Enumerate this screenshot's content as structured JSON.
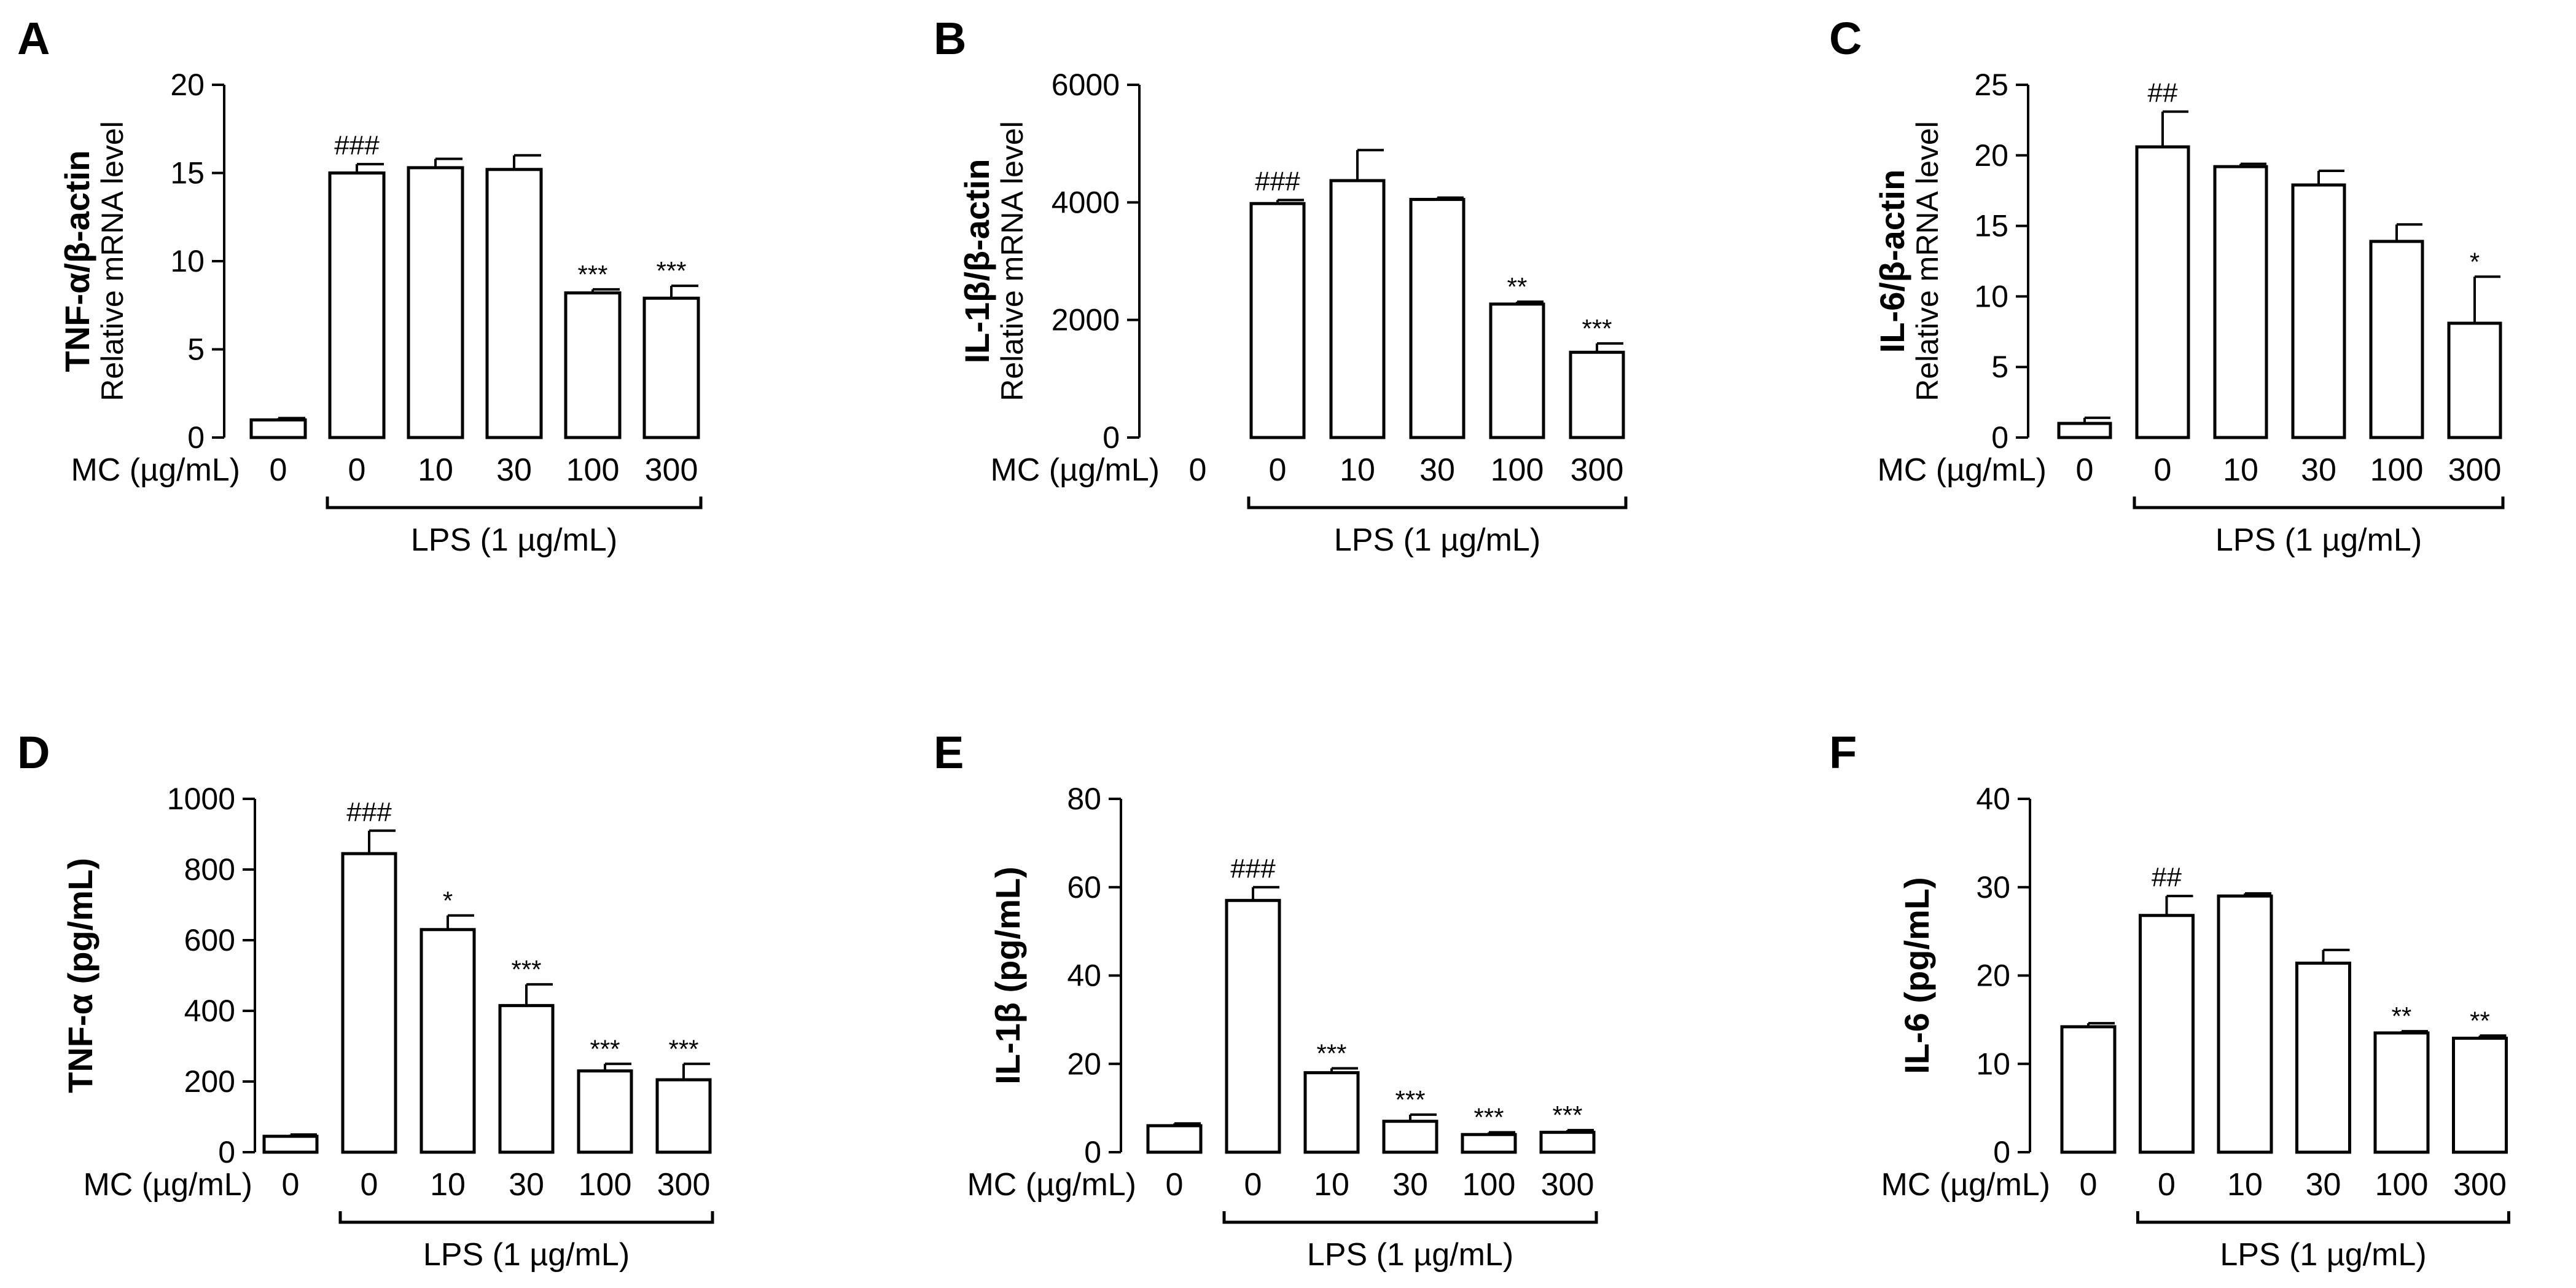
{
  "figure": {
    "x_label": "MC (µg/mL)",
    "group_label": "LPS (1 µg/mL)"
  },
  "chart_data": [
    {
      "panel": "A",
      "type": "bar",
      "ylabel_main": "TNF-α/β-actin",
      "ylabel_sub": "Relative mRNA level",
      "categories": [
        "0",
        "0",
        "10",
        "30",
        "100",
        "300"
      ],
      "values": [
        1,
        15,
        15.3,
        15.2,
        8.2,
        7.9
      ],
      "errors": [
        0.1,
        0.5,
        0.5,
        0.8,
        0.2,
        0.7
      ],
      "annotations": [
        "",
        "###",
        "",
        "",
        "***",
        "***"
      ],
      "ylim": [
        0,
        20
      ],
      "yticks": [
        0,
        5,
        10,
        15,
        20
      ],
      "grid": false,
      "legend": "none"
    },
    {
      "panel": "B",
      "type": "bar",
      "ylabel_main": "IL-1β/β-actin",
      "ylabel_sub": "Relative mRNA level",
      "categories": [
        "0",
        "0",
        "10",
        "30",
        "100",
        "300"
      ],
      "values": [
        0,
        3980,
        4370,
        4050,
        2270,
        1450
      ],
      "errors": [
        0,
        60,
        520,
        30,
        40,
        150
      ],
      "annotations": [
        "",
        "###",
        "",
        "",
        "**",
        "***"
      ],
      "ylim": [
        0,
        6000
      ],
      "yticks": [
        0,
        2000,
        4000,
        6000
      ],
      "grid": false,
      "legend": "none"
    },
    {
      "panel": "C",
      "type": "bar",
      "ylabel_main": "IL-6/β-actin",
      "ylabel_sub": "Relative mRNA level",
      "categories": [
        "0",
        "0",
        "10",
        "30",
        "100",
        "300"
      ],
      "values": [
        1,
        20.6,
        19.2,
        17.9,
        13.9,
        8.1
      ],
      "errors": [
        0.4,
        2.5,
        0.2,
        1.0,
        1.2,
        3.3
      ],
      "annotations": [
        "",
        "##",
        "",
        "",
        "",
        "*"
      ],
      "ylim": [
        0,
        25
      ],
      "yticks": [
        0,
        5,
        10,
        15,
        20,
        25
      ],
      "grid": false,
      "legend": "none"
    },
    {
      "panel": "D",
      "type": "bar",
      "ylabel_main": "TNF-α (pg/mL)",
      "ylabel_sub": "",
      "categories": [
        "0",
        "0",
        "10",
        "30",
        "100",
        "300"
      ],
      "values": [
        45,
        845,
        630,
        415,
        230,
        205
      ],
      "errors": [
        5,
        65,
        40,
        60,
        20,
        45
      ],
      "annotations": [
        "",
        "###",
        "*",
        "***",
        "***",
        "***"
      ],
      "ylim": [
        0,
        1000
      ],
      "yticks": [
        0,
        200,
        400,
        600,
        800,
        1000
      ],
      "grid": false,
      "legend": "none"
    },
    {
      "panel": "E",
      "type": "bar",
      "ylabel_main": "IL-1β (pg/mL)",
      "ylabel_sub": "",
      "categories": [
        "0",
        "0",
        "10",
        "30",
        "100",
        "300"
      ],
      "values": [
        6,
        57,
        18,
        7,
        4,
        4.5
      ],
      "errors": [
        0.5,
        3,
        1,
        1.5,
        0.5,
        0.5
      ],
      "annotations": [
        "",
        "###",
        "***",
        "***",
        "***",
        "***"
      ],
      "ylim": [
        0,
        80
      ],
      "yticks": [
        0,
        20,
        40,
        60,
        80
      ],
      "grid": false,
      "legend": "none"
    },
    {
      "panel": "F",
      "type": "bar",
      "ylabel_main": "IL-6 (pg/mL)",
      "ylabel_sub": "",
      "categories": [
        "0",
        "0",
        "10",
        "30",
        "100",
        "300"
      ],
      "values": [
        14.2,
        26.8,
        29,
        21.4,
        13.5,
        12.9
      ],
      "errors": [
        0.4,
        2.2,
        0.3,
        1.5,
        0.2,
        0.3
      ],
      "annotations": [
        "",
        "##",
        "",
        "",
        "**",
        "**"
      ],
      "ylim": [
        0,
        40
      ],
      "yticks": [
        0,
        10,
        20,
        30,
        40
      ],
      "grid": false,
      "legend": "none"
    }
  ]
}
